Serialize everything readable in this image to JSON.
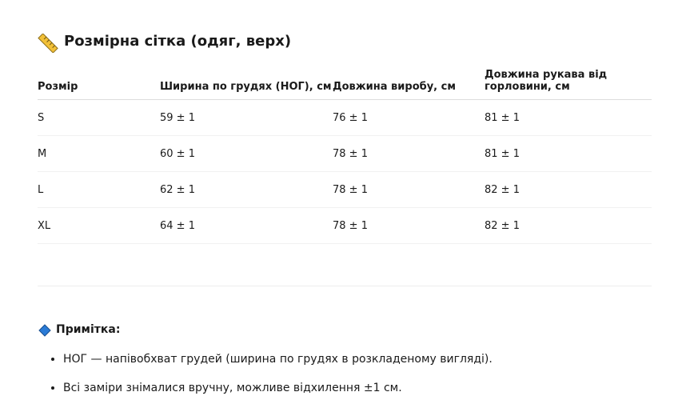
{
  "header": {
    "title": "Розмірна сітка (одяг, верх)"
  },
  "table": {
    "columns": [
      "Розмір",
      "Ширина по грудях (НОГ), см",
      "Довжина виробу, см",
      "Довжина рукава від горловини, см"
    ],
    "rows": [
      [
        "S",
        "59 ± 1",
        "76 ± 1",
        "81 ± 1"
      ],
      [
        "M",
        "60 ± 1",
        "78 ± 1",
        "81 ± 1"
      ],
      [
        "L",
        "62 ± 1",
        "78 ± 1",
        "82 ± 1"
      ],
      [
        "XL",
        "64 ± 1",
        "78 ± 1",
        "82 ± 1"
      ]
    ]
  },
  "note": {
    "title": "Примітка:",
    "items": [
      "НОГ — напівобхват грудей (ширина по грудях в розкладеному вигляді).",
      "Всі заміри знімалися вручну, можливе відхилення ±1 см."
    ]
  }
}
